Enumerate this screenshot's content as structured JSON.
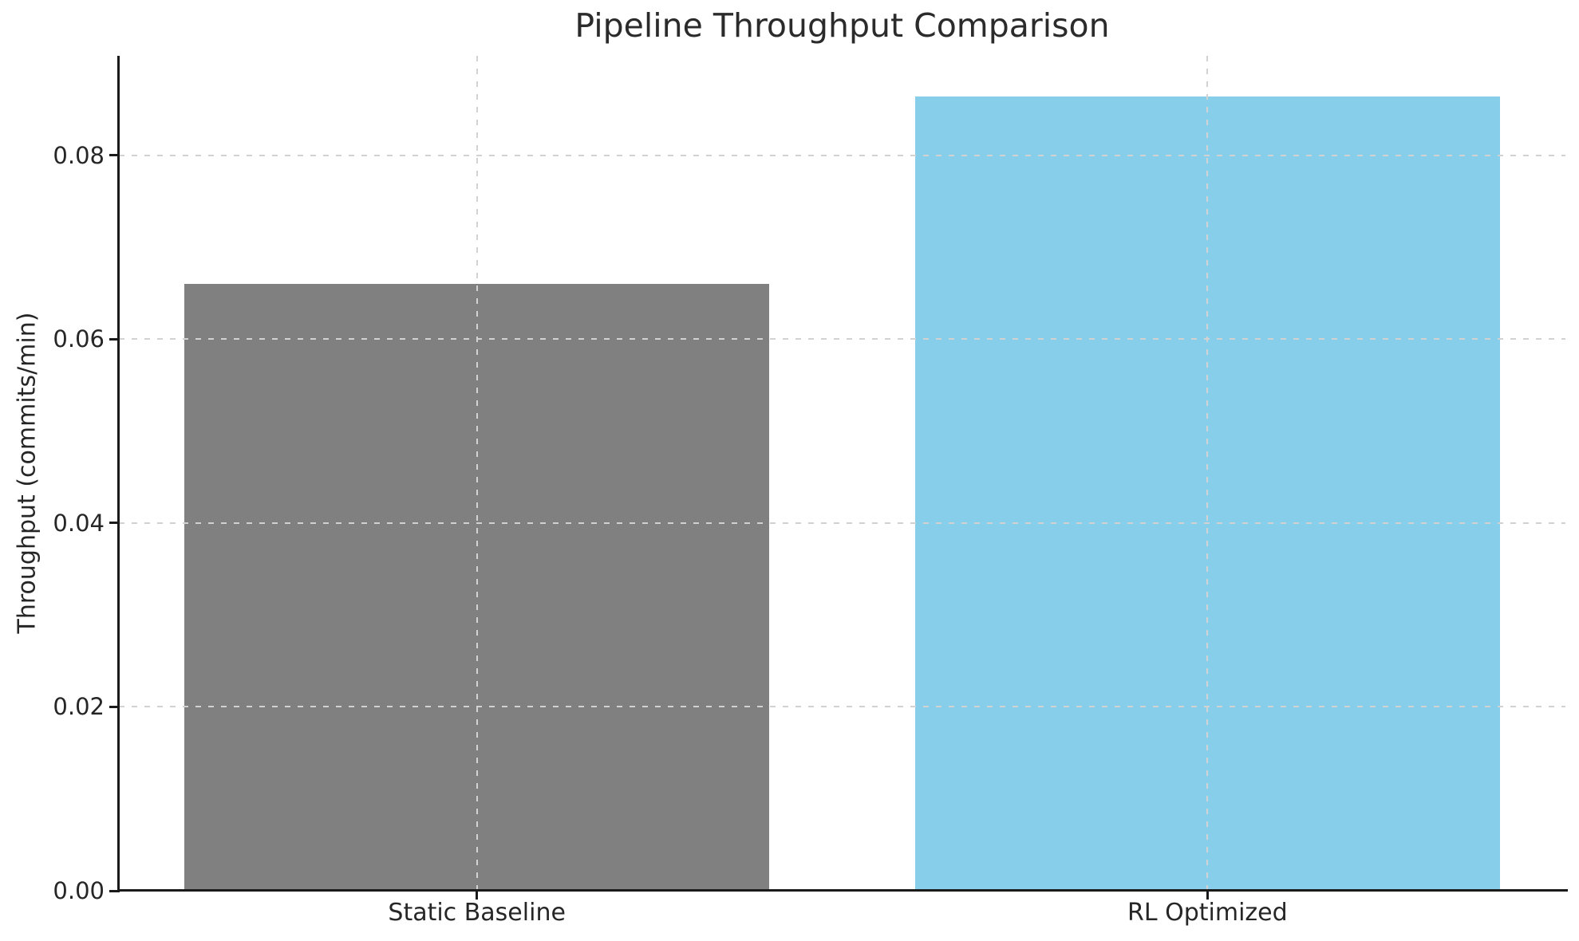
{
  "chart_data": {
    "type": "bar",
    "title": "Pipeline Throughput Comparison",
    "xlabel": "",
    "ylabel": "Throughput (commits/min)",
    "categories": [
      "Static Baseline",
      "RL Optimized"
    ],
    "values": [
      0.066,
      0.0864
    ],
    "bar_colors": [
      "#808080",
      "#87CEEB"
    ],
    "ylim": [
      0,
      0.0908
    ],
    "yticks": [
      0.0,
      0.02,
      0.04,
      0.06,
      0.08
    ],
    "ytick_labels": [
      "0.00",
      "0.02",
      "0.04",
      "0.06",
      "0.08"
    ],
    "grid": "dashed",
    "grid_axes": "both",
    "grid_on_top": true,
    "legend_position": "none",
    "background_color": "#ffffff",
    "text_color": "#262626",
    "grid_color": "#d2d2d2"
  }
}
